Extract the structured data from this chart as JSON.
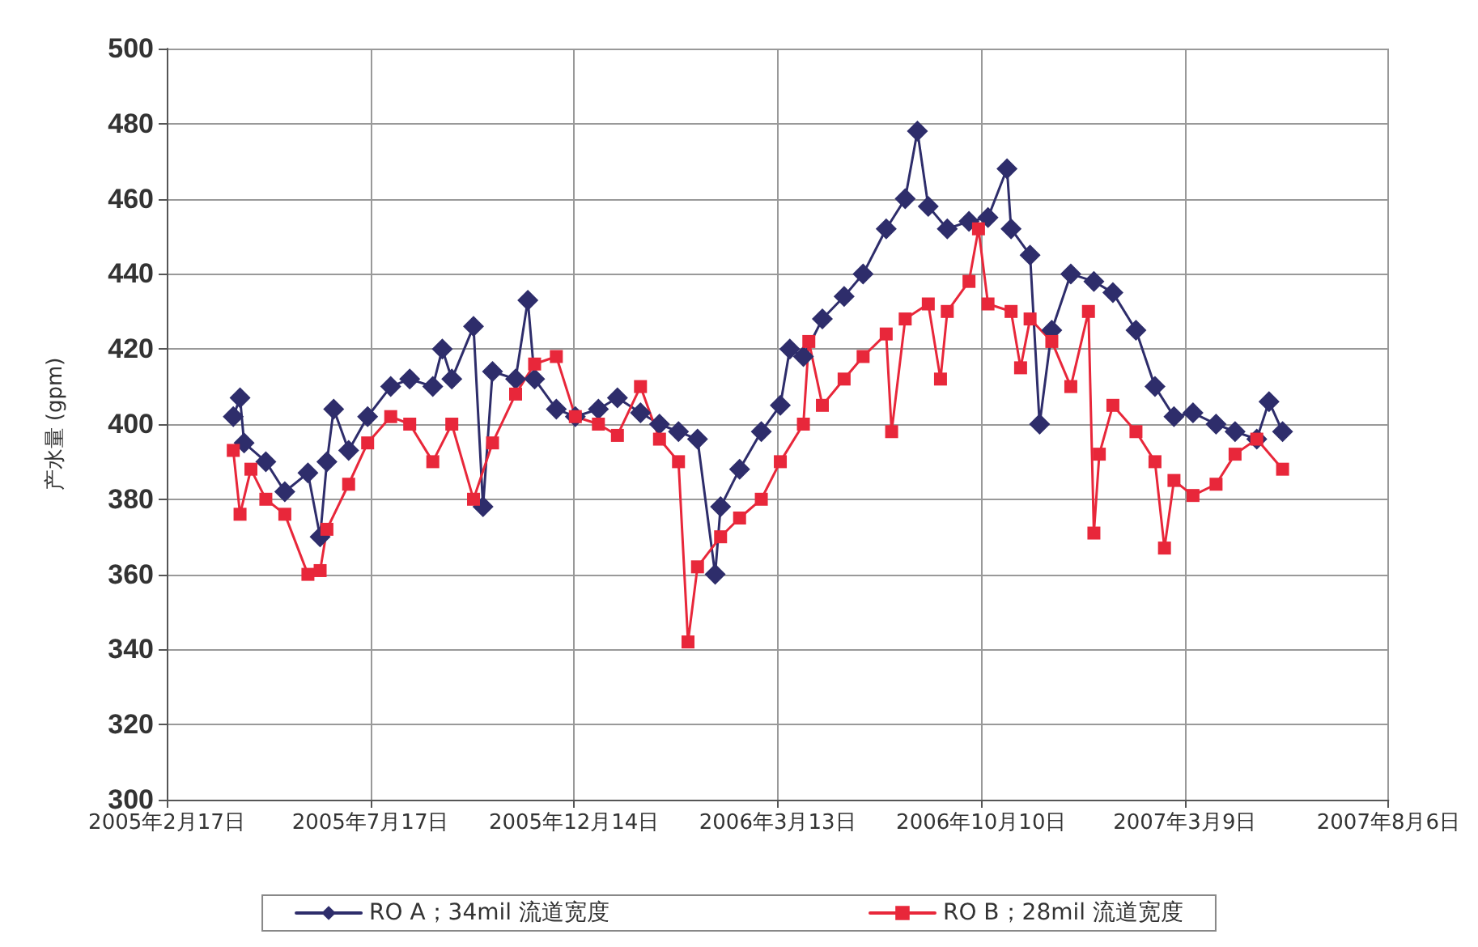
{
  "chart_data": {
    "type": "line",
    "ylabel": "产水量 (gpm)",
    "ylim": [
      300,
      500
    ],
    "yticks": [
      300,
      320,
      340,
      360,
      380,
      400,
      420,
      440,
      460,
      480,
      500
    ],
    "xlim": [
      "2005-02-17",
      "2007-08-06"
    ],
    "xticks": [
      {
        "value": "2005-02-17",
        "label": "2005年2月17日"
      },
      {
        "value": "2005-07-17",
        "label": "2005年7月17日"
      },
      {
        "value": "2005-12-14",
        "label": "2005年12月14日"
      },
      {
        "value": "2006-05-13",
        "label": "2006年3月13日"
      },
      {
        "value": "2006-10-10",
        "label": "2006年10月10日"
      },
      {
        "value": "2007-03-09",
        "label": "2007年3月9日"
      },
      {
        "value": "2007-08-06",
        "label": "2007年8月6日"
      }
    ],
    "grid": true,
    "legend": "bottom",
    "line_style": "solid",
    "series": [
      {
        "name": "RO A；34mil 流道宽度",
        "color": "#2e2d6b",
        "marker": "diamond",
        "x": [
          "2005-04-07",
          "2005-04-12",
          "2005-04-15",
          "2005-05-01",
          "2005-05-15",
          "2005-06-01",
          "2005-06-10",
          "2005-06-15",
          "2005-06-20",
          "2005-07-01",
          "2005-07-15",
          "2005-08-01",
          "2005-08-15",
          "2005-09-01",
          "2005-09-08",
          "2005-09-15",
          "2005-10-01",
          "2005-10-08",
          "2005-10-15",
          "2005-11-01",
          "2005-11-10",
          "2005-11-15",
          "2005-12-01",
          "2005-12-15",
          "2006-01-01",
          "2006-01-15",
          "2006-02-01",
          "2006-02-15",
          "2006-03-01",
          "2006-03-15",
          "2006-03-28",
          "2006-04-01",
          "2006-04-15",
          "2006-05-01",
          "2006-05-15",
          "2006-05-22",
          "2006-06-01",
          "2006-06-15",
          "2006-07-01",
          "2006-07-15",
          "2006-08-01",
          "2006-08-15",
          "2006-08-24",
          "2006-09-01",
          "2006-09-15",
          "2006-10-01",
          "2006-10-15",
          "2006-10-29",
          "2006-11-01",
          "2006-11-15",
          "2006-11-22",
          "2006-12-01",
          "2006-12-15",
          "2007-01-01",
          "2007-01-15",
          "2007-02-01",
          "2007-02-15",
          "2007-03-01",
          "2007-03-15",
          "2007-04-01",
          "2007-04-15",
          "2007-05-01",
          "2007-05-10",
          "2007-05-20"
        ],
        "values": [
          402,
          407,
          395,
          390,
          382,
          387,
          370,
          390,
          404,
          393,
          402,
          410,
          412,
          410,
          420,
          412,
          426,
          378,
          414,
          412,
          433,
          412,
          404,
          402,
          404,
          407,
          403,
          400,
          398,
          396,
          360,
          378,
          388,
          398,
          405,
          420,
          418,
          428,
          434,
          440,
          452,
          460,
          478,
          458,
          452,
          454,
          455,
          468,
          452,
          445,
          400,
          425,
          440,
          438,
          435,
          425,
          410,
          402,
          403,
          400,
          398,
          396,
          406,
          398
        ]
      },
      {
        "name": "RO B；28mil 流道宽度",
        "color": "#e8273a",
        "marker": "square",
        "x": [
          "2005-04-07",
          "2005-04-12",
          "2005-04-20",
          "2005-05-01",
          "2005-05-15",
          "2005-06-01",
          "2005-06-10",
          "2005-06-15",
          "2005-07-01",
          "2005-07-15",
          "2005-08-01",
          "2005-08-15",
          "2005-09-01",
          "2005-09-15",
          "2005-10-01",
          "2005-10-15",
          "2005-11-01",
          "2005-11-15",
          "2005-12-01",
          "2005-12-15",
          "2006-01-01",
          "2006-01-15",
          "2006-02-01",
          "2006-02-15",
          "2006-03-01",
          "2006-03-08",
          "2006-03-15",
          "2006-04-01",
          "2006-04-15",
          "2006-05-01",
          "2006-05-15",
          "2006-06-01",
          "2006-06-05",
          "2006-06-15",
          "2006-07-01",
          "2006-07-15",
          "2006-08-01",
          "2006-08-05",
          "2006-08-15",
          "2006-09-01",
          "2006-09-10",
          "2006-09-15",
          "2006-10-01",
          "2006-10-08",
          "2006-10-15",
          "2006-11-01",
          "2006-11-08",
          "2006-11-15",
          "2006-12-01",
          "2006-12-15",
          "2006-12-28",
          "2007-01-01",
          "2007-01-05",
          "2007-01-15",
          "2007-02-01",
          "2007-02-15",
          "2007-02-22",
          "2007-03-01",
          "2007-03-15",
          "2007-04-01",
          "2007-04-15",
          "2007-05-01",
          "2007-05-20"
        ],
        "values": [
          393,
          376,
          388,
          380,
          376,
          360,
          361,
          372,
          384,
          395,
          402,
          400,
          390,
          400,
          380,
          395,
          408,
          416,
          418,
          402,
          400,
          397,
          410,
          396,
          390,
          342,
          362,
          370,
          375,
          380,
          390,
          400,
          422,
          405,
          412,
          418,
          424,
          398,
          428,
          432,
          412,
          430,
          438,
          452,
          432,
          430,
          415,
          428,
          422,
          410,
          430,
          371,
          392,
          405,
          398,
          390,
          367,
          385,
          381,
          384,
          392,
          396,
          388
        ]
      }
    ]
  }
}
